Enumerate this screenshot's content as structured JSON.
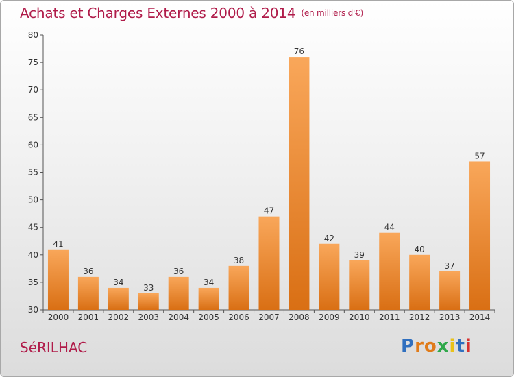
{
  "chart_data": {
    "type": "bar",
    "title": "Achats et Charges Externes 2000 à 2014",
    "subtitle": "(en milliers d'€)",
    "categories": [
      "2000",
      "2001",
      "2002",
      "2003",
      "2004",
      "2005",
      "2006",
      "2007",
      "2008",
      "2009",
      "2010",
      "2011",
      "2012",
      "2013",
      "2014"
    ],
    "values": [
      41,
      36,
      34,
      33,
      36,
      34,
      38,
      47,
      76,
      42,
      39,
      44,
      40,
      37,
      57
    ],
    "data_labels": [
      "41",
      "36",
      "34",
      "33",
      "36",
      "34",
      "38",
      "47",
      "76",
      "42",
      "39",
      "44",
      "40",
      "37",
      "57"
    ],
    "ylim": [
      30,
      80
    ],
    "yticks": [
      30,
      35,
      40,
      45,
      50,
      55,
      60,
      65,
      70,
      75,
      80
    ],
    "ytick_labels": [
      "30",
      "35",
      "40",
      "45",
      "50",
      "55",
      "60",
      "65",
      "70",
      "75",
      "80"
    ],
    "xlabel": "",
    "ylabel": "",
    "grid": false,
    "bar_color_top": "#f9a75a",
    "bar_color_bottom": "#d96f14",
    "title_color": "#b01c4a"
  },
  "footer": {
    "commune": "SéRILHAC"
  },
  "logo": {
    "letters": [
      {
        "char": "P",
        "color": "#2f6fbf"
      },
      {
        "char": "r",
        "color": "#e07b1a"
      },
      {
        "char": "o",
        "color": "#e07b1a"
      },
      {
        "char": "x",
        "color": "#2fa84a"
      },
      {
        "char": "i",
        "color": "#e9c21a"
      },
      {
        "char": "t",
        "color": "#2f6fbf"
      },
      {
        "char": "i",
        "color": "#d8302e"
      }
    ]
  }
}
